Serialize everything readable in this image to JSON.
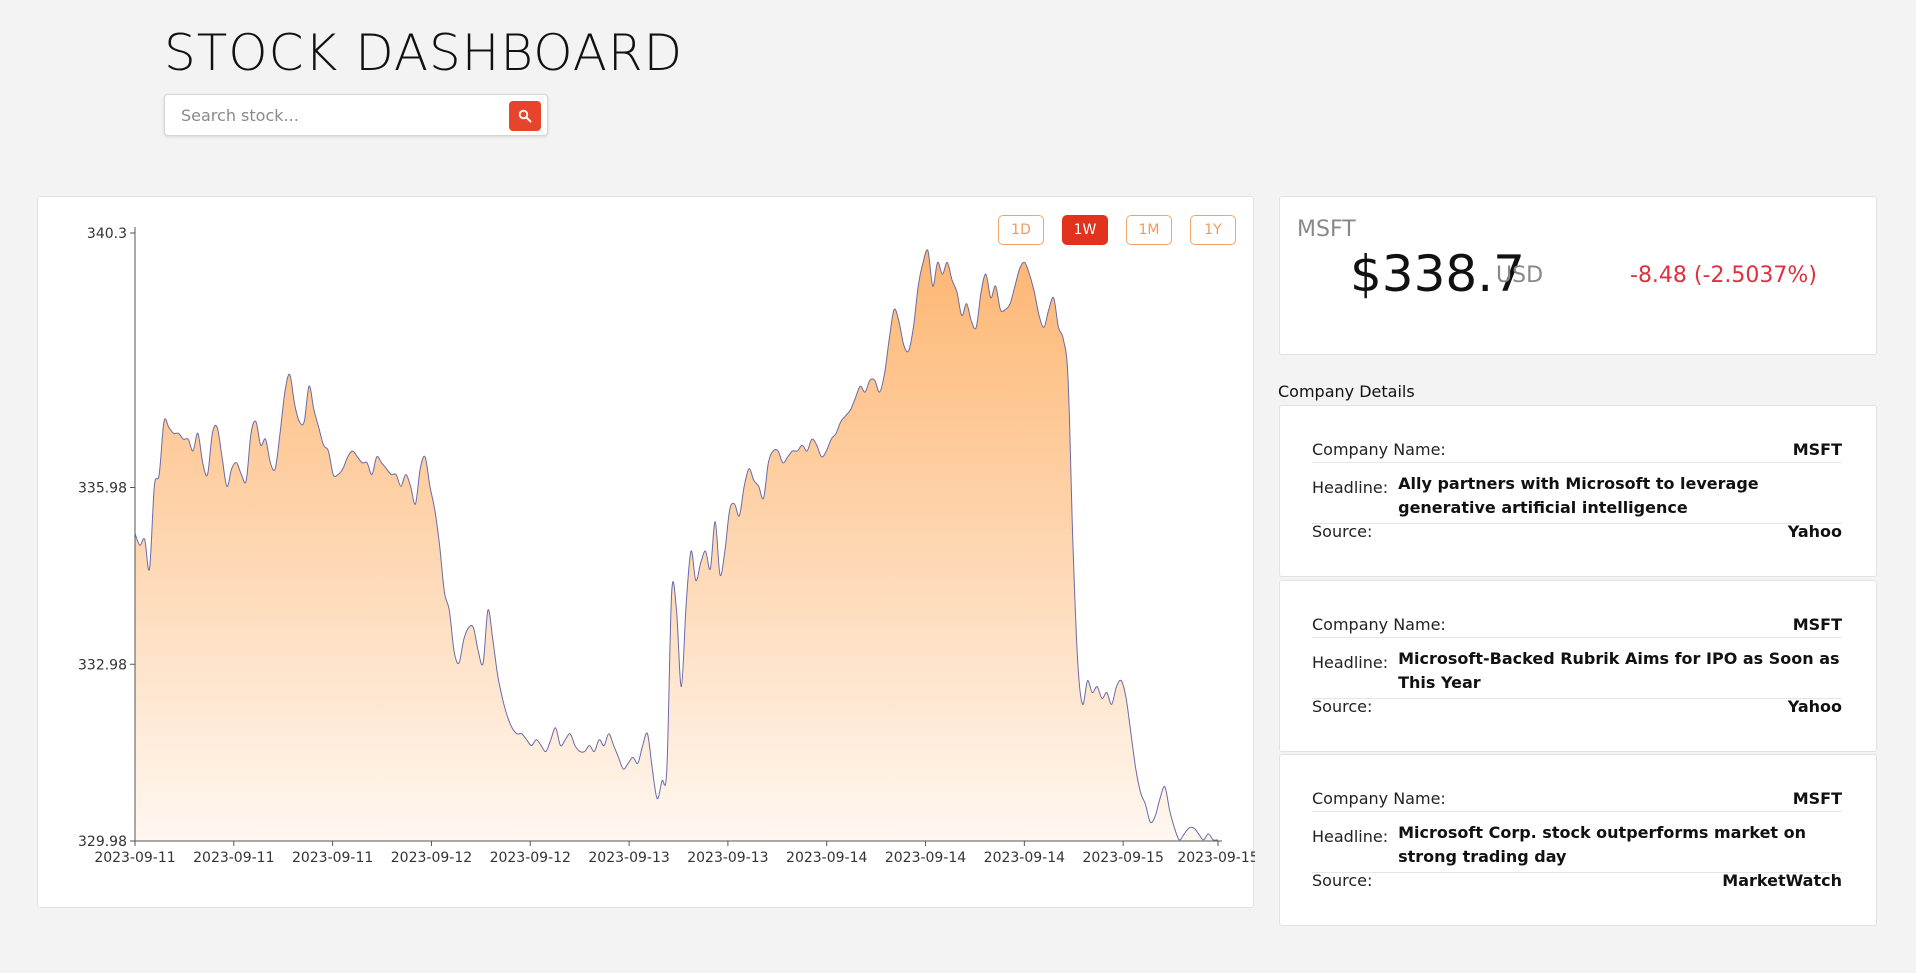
{
  "header": {
    "title": "STOCK DASHBOARD"
  },
  "search": {
    "placeholder": "Search stock...",
    "button_icon": "search-icon"
  },
  "range_buttons": [
    {
      "label": "1D",
      "active": false
    },
    {
      "label": "1W",
      "active": true
    },
    {
      "label": "1M",
      "active": false
    },
    {
      "label": "1Y",
      "active": false
    }
  ],
  "quote": {
    "symbol": "MSFT",
    "price": "$338.7",
    "currency": "USD",
    "change": "-8.48 (-2.5037%)"
  },
  "details": {
    "title": "Company Details",
    "items": [
      {
        "name_label": "Company Name:",
        "name": "MSFT",
        "headline_label": "Headline:",
        "headline": "Ally partners with Microsoft to leverage generative artificial intelligence",
        "source_label": "Source:",
        "source": "Yahoo"
      },
      {
        "name_label": "Company Name:",
        "name": "MSFT",
        "headline_label": "Headline:",
        "headline": "Microsoft-Backed Rubrik Aims for IPO as Soon as This Year",
        "source_label": "Source:",
        "source": "Yahoo"
      },
      {
        "name_label": "Company Name:",
        "name": "MSFT",
        "headline_label": "Headline:",
        "headline": "Microsoft Corp. stock outperforms market on strong trading day",
        "source_label": "Source:",
        "source": "MarketWatch"
      }
    ]
  },
  "colors": {
    "accent": "#e0321c",
    "fill_top": "#fdbb7d",
    "line": "#6a6aa8",
    "negative": "#e0303f"
  },
  "chart_data": {
    "type": "area",
    "ylim": [
      329.98,
      340.3
    ],
    "yticks": [
      "340.3",
      "335.98",
      "332.98",
      "329.98"
    ],
    "xticks": [
      "2023-09-11",
      "2023-09-11",
      "2023-09-11",
      "2023-09-12",
      "2023-09-12",
      "2023-09-13",
      "2023-09-13",
      "2023-09-14",
      "2023-09-14",
      "2023-09-14",
      "2023-09-15",
      "2023-09-15"
    ],
    "values": [
      335.2,
      335.0,
      335.1,
      334.6,
      336.0,
      336.2,
      337.1,
      337.0,
      336.9,
      336.9,
      336.8,
      336.8,
      336.6,
      336.9,
      336.4,
      336.2,
      336.9,
      337.0,
      336.5,
      336.0,
      336.3,
      336.4,
      336.2,
      336.1,
      336.9,
      337.1,
      336.7,
      336.8,
      336.4,
      336.3,
      336.9,
      337.6,
      337.9,
      337.4,
      337.1,
      337.1,
      337.7,
      337.3,
      337.0,
      336.7,
      336.6,
      336.2,
      336.2,
      336.3,
      336.5,
      336.6,
      336.5,
      336.4,
      336.4,
      336.2,
      336.5,
      336.4,
      336.3,
      336.2,
      336.2,
      336.0,
      336.2,
      336.0,
      335.7,
      336.3,
      336.5,
      336.0,
      335.6,
      335.0,
      334.2,
      333.9,
      333.2,
      333.0,
      333.4,
      333.6,
      333.6,
      333.2,
      333.0,
      333.9,
      333.4,
      332.8,
      332.4,
      332.1,
      331.9,
      331.8,
      331.8,
      331.7,
      331.6,
      331.7,
      331.6,
      331.5,
      331.7,
      331.9,
      331.6,
      331.7,
      331.8,
      331.6,
      331.5,
      331.5,
      331.6,
      331.5,
      331.7,
      331.6,
      331.8,
      331.6,
      331.4,
      331.2,
      331.3,
      331.4,
      331.3,
      331.6,
      331.8,
      331.2,
      330.7,
      331.0,
      331.2,
      334.2,
      333.9,
      332.6,
      334.0,
      334.9,
      334.4,
      334.7,
      334.9,
      334.6,
      335.4,
      334.5,
      334.9,
      335.6,
      335.7,
      335.5,
      336.0,
      336.3,
      336.1,
      336.0,
      335.8,
      336.4,
      336.6,
      336.6,
      336.4,
      336.5,
      336.6,
      336.6,
      336.7,
      336.6,
      336.8,
      336.7,
      336.5,
      336.6,
      336.8,
      336.9,
      337.1,
      337.2,
      337.3,
      337.5,
      337.7,
      337.6,
      337.8,
      337.8,
      337.6,
      337.9,
      338.5,
      339.0,
      338.8,
      338.4,
      338.3,
      338.7,
      339.4,
      339.8,
      340.0,
      339.4,
      339.8,
      339.6,
      339.8,
      339.5,
      339.3,
      338.9,
      339.1,
      338.8,
      338.7,
      339.3,
      339.6,
      339.2,
      339.4,
      339.0,
      339.0,
      339.1,
      339.4,
      339.7,
      339.8,
      339.6,
      339.3,
      338.9,
      338.7,
      339.0,
      339.2,
      338.7,
      338.5,
      337.8,
      335.0,
      333.0,
      332.3,
      332.7,
      332.5,
      332.6,
      332.4,
      332.5,
      332.3,
      332.6,
      332.7,
      332.4,
      331.8,
      331.2,
      330.8,
      330.6,
      330.3,
      330.4,
      330.7,
      330.9,
      330.5,
      330.2,
      330.0,
      330.1,
      330.2,
      330.2,
      330.1,
      330.0,
      330.1,
      330.0,
      330.0
    ]
  }
}
